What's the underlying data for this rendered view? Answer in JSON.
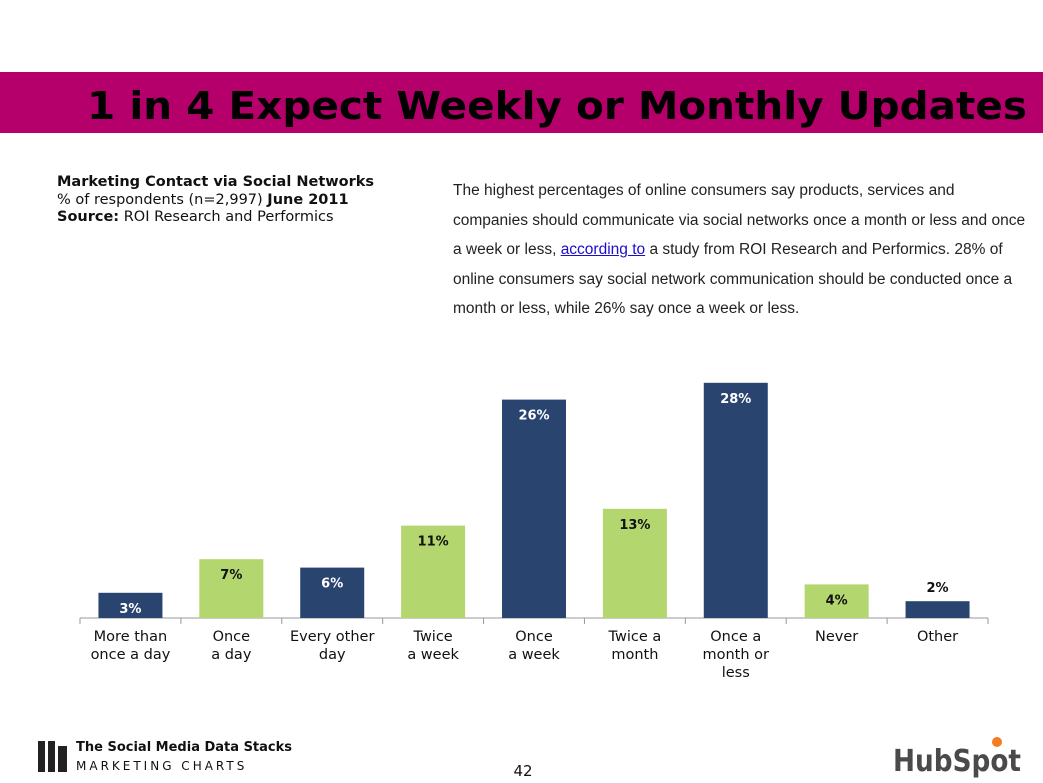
{
  "header": {
    "title": "1 in 4 Expect Weekly or Monthly Updates"
  },
  "chart_info": {
    "heading": "Marketing Contact via Social Networks",
    "respondents": "% of respondents (n=2,997)",
    "date": "June 2011",
    "source_label": "Source:",
    "source": "ROI Research and Performics"
  },
  "paragraph": {
    "before": "The highest percentages of online consumers say products, services and companies should communicate via social networks once a month or less and once a week or less, ",
    "link": "according to",
    "after": " a study from ROI Research and Performics. 28% of online consumers say social network communication should be conducted once a month or less, while 26% say once a week or less."
  },
  "chart_data": {
    "type": "bar",
    "categories": [
      "More than\nonce a day",
      "Once\na day",
      "Every other\nday",
      "Twice\na week",
      "Once\na week",
      "Twice a\nmonth",
      "Once a\nmonth or\nless",
      "Never",
      "Other"
    ],
    "values": [
      3,
      7,
      6,
      11,
      26,
      13,
      28,
      4,
      2
    ],
    "value_labels": [
      "3%",
      "7%",
      "6%",
      "11%",
      "26%",
      "13%",
      "28%",
      "4%",
      "2%"
    ],
    "colors": [
      "#2a4470",
      "#b3d66f",
      "#2a4470",
      "#b3d66f",
      "#2a4470",
      "#b3d66f",
      "#2a4470",
      "#b3d66f",
      "#2a4470"
    ]
  },
  "footer": {
    "brand": "The Social Media Data Stacks",
    "brand_sub": "MARKETING CHARTS",
    "page": "42",
    "logo": "HubSpot"
  }
}
